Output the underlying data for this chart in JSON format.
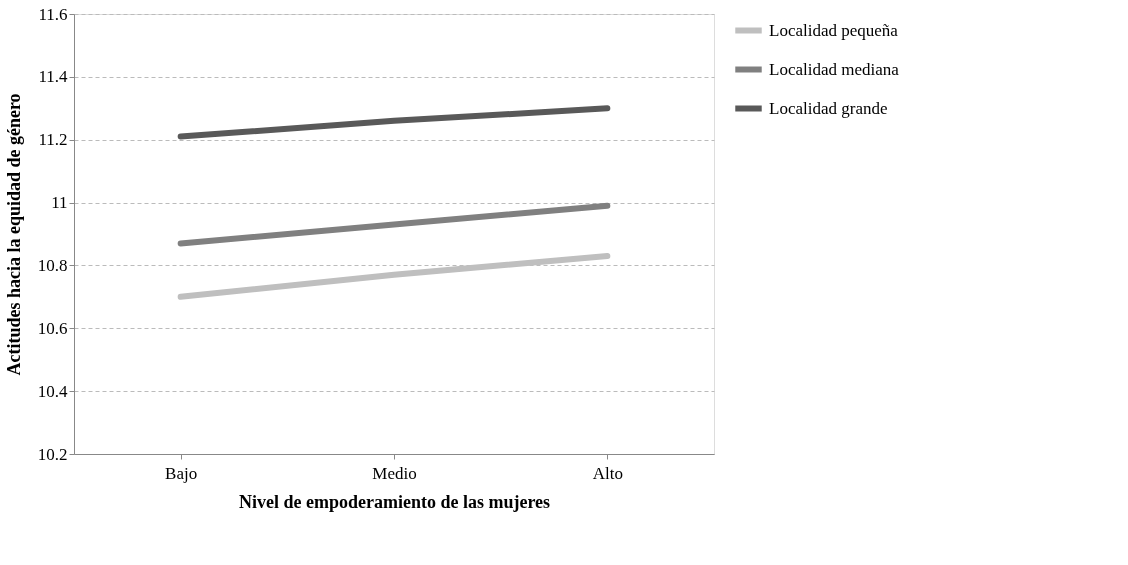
{
  "chart_data": {
    "type": "line",
    "xlabel": "Nivel de empoderamiento de las mujeres",
    "ylabel": "Actitudes hacia la equidad de género",
    "categories": [
      "Bajo",
      "Medio",
      "Alto"
    ],
    "series": [
      {
        "name": "Localidad pequeña",
        "color": "#bfbfbf",
        "values": [
          10.7,
          10.77,
          10.83
        ]
      },
      {
        "name": "Localidad mediana",
        "color": "#808080",
        "values": [
          10.87,
          10.93,
          10.99
        ]
      },
      {
        "name": "Localidad grande",
        "color": "#595959",
        "values": [
          11.21,
          11.26,
          11.3
        ]
      }
    ],
    "ylim": [
      10.2,
      11.6
    ],
    "yticks": [
      10.2,
      10.4,
      10.6,
      10.8,
      11,
      11.2,
      11.4,
      11.6
    ],
    "grid": "y",
    "legend": "right",
    "marker": "none",
    "line_style": "solid"
  }
}
